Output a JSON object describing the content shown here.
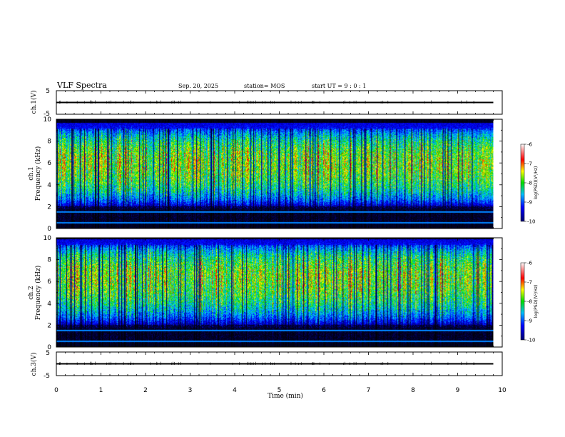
{
  "header": {
    "title": "VLF Spectra",
    "date": "Sep. 20, 2025",
    "station": "station= MOS",
    "start": "start UT =   9 : 0 : 1"
  },
  "colors": {
    "background": "#000000",
    "blue": "#0033ff",
    "cyan": "#00e0e0",
    "green": "#00d000",
    "yellow": "#ffff00",
    "red": "#ff0000"
  },
  "chart_data": [
    {
      "type": "line",
      "name": "ch1-waveform",
      "ylabel": "ch.1(V)",
      "ylim": [
        -5,
        5
      ],
      "yticks": [
        "5",
        "-5"
      ],
      "xlim": [
        0,
        10
      ],
      "x": [
        0,
        9.8
      ],
      "y": [
        0,
        0
      ]
    },
    {
      "type": "heatmap",
      "name": "ch1-spectrogram",
      "ylabel_line1": "ch.1",
      "ylabel_line2": "Frequency (kHz)",
      "xlim": [
        0,
        10
      ],
      "ylim": [
        0,
        10
      ],
      "yticks": [
        "0",
        "2",
        "4",
        "6",
        "8",
        "10"
      ],
      "data_extent_x": [
        0,
        9.8
      ],
      "band_peak_khz": 6,
      "band_range_khz": [
        2,
        9.5
      ],
      "noise_lines_khz": [
        0.5,
        1.5
      ],
      "colorbar": {
        "label": "log(PSD)(V²/Hz)",
        "range": [
          -10,
          -6
        ],
        "ticks": [
          "-6",
          "-7",
          "-8",
          "-9",
          "-10"
        ]
      }
    },
    {
      "type": "heatmap",
      "name": "ch2-spectrogram",
      "ylabel_line1": "ch.2",
      "ylabel_line2": "Frequency (kHz)",
      "xlim": [
        0,
        10
      ],
      "ylim": [
        0,
        10
      ],
      "yticks": [
        "0",
        "2",
        "4",
        "6",
        "8",
        "10"
      ],
      "data_extent_x": [
        0,
        9.8
      ],
      "band_peak_khz": 6.5,
      "band_range_khz": [
        2,
        9.7
      ],
      "noise_lines_khz": [
        0.5,
        1.5
      ],
      "colorbar": {
        "label": "log(PSD)(V²/Hz)",
        "range": [
          -10,
          -6
        ],
        "ticks": [
          "-6",
          "-7",
          "-8",
          "-9",
          "-10"
        ]
      }
    },
    {
      "type": "line",
      "name": "ch3-waveform",
      "ylabel": "ch.3(V)",
      "ylim": [
        -5,
        5
      ],
      "yticks": [
        "5",
        "-5"
      ],
      "xlim": [
        0,
        10
      ],
      "x": [
        0,
        9.8
      ],
      "y": [
        0,
        0
      ]
    }
  ],
  "xaxis": {
    "label": "Time (min)",
    "ticks": [
      "0",
      "1",
      "2",
      "3",
      "4",
      "5",
      "6",
      "7",
      "8",
      "9",
      "10"
    ]
  }
}
